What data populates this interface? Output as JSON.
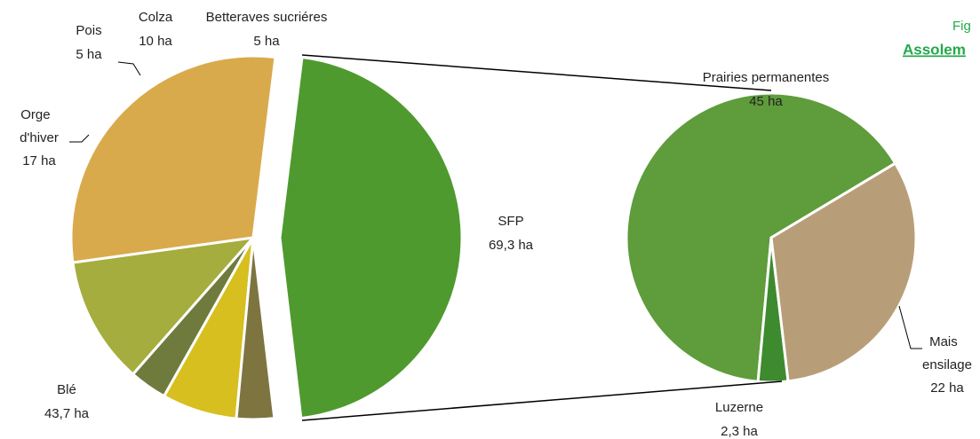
{
  "header": {
    "figure": "Fig",
    "title": "Assolem"
  },
  "chart_data": [
    {
      "type": "pie",
      "categories": [
        "SFP",
        "Betteraves sucriéres",
        "Colza",
        "Pois",
        "Orge d'hiver",
        "Blé"
      ],
      "values": [
        69.3,
        5,
        10,
        5,
        17,
        43.7
      ],
      "value_labels": [
        "69,3 ha",
        "5 ha",
        "10 ha",
        "5 ha",
        "17 ha",
        "43,7 ha"
      ],
      "colors": [
        "#4f9a2e",
        "#7d7440",
        "#d6bf1e",
        "#6f7b3c",
        "#a4ad3e",
        "#d9aa4c"
      ]
    },
    {
      "type": "pie",
      "categories": [
        "Mais ensilage",
        "Luzerne",
        "Prairies permanentes"
      ],
      "values": [
        22,
        2.3,
        45
      ],
      "value_labels": [
        "22 ha",
        "2,3 ha",
        "45 ha"
      ],
      "colors": [
        "#b89e78",
        "#3e8a2e",
        "#5e9c3c"
      ]
    }
  ]
}
